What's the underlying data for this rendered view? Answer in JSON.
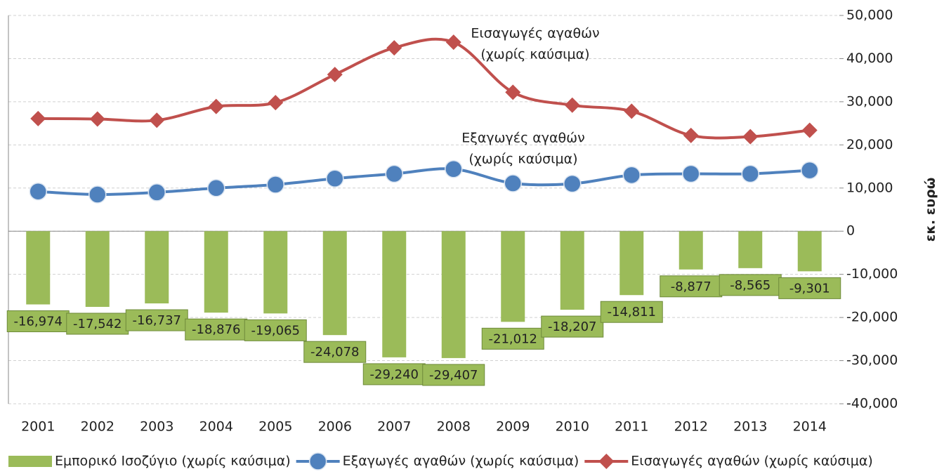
{
  "chart_data": {
    "type": "bar_line",
    "y_label": "εκ. ευρώ",
    "categories": [
      "2001",
      "2002",
      "2003",
      "2004",
      "2005",
      "2006",
      "2007",
      "2008",
      "2009",
      "2010",
      "2011",
      "2012",
      "2013",
      "2014"
    ],
    "series": [
      {
        "name": "Εμπορικό Ισοζύγιο (χωρίς καύσιμα)",
        "type": "bar",
        "color": "#9bbb59",
        "values": [
          -16974,
          -17542,
          -16737,
          -18876,
          -19065,
          -24078,
          -29240,
          -29407,
          -21012,
          -18207,
          -14811,
          -8877,
          -8565,
          -9301
        ],
        "value_labels": [
          "-16,974",
          "-17,542",
          "-16,737",
          "-18,876",
          "-19,065",
          "-24,078",
          "-29,240",
          "-29,407",
          "-21,012",
          "-18,207",
          "-14,811",
          "-8,877",
          "-8,565",
          "-9,301"
        ]
      },
      {
        "name": "Εξαγωγές αγαθών (χωρίς καύσιμα)",
        "type": "line",
        "marker": "circle",
        "color": "#4f81bd",
        "values": [
          9200,
          8500,
          9000,
          10000,
          10800,
          12200,
          13300,
          14400,
          11100,
          11000,
          13000,
          13300,
          13300,
          14100
        ]
      },
      {
        "name": "Εισαγωγές αγαθών (χωρίς καύσιμα)",
        "type": "line",
        "marker": "diamond",
        "color": "#c0504d",
        "values": [
          26100,
          26000,
          25700,
          28900,
          29800,
          36300,
          42500,
          43800,
          32200,
          29200,
          27800,
          22200,
          21900,
          23400
        ]
      }
    ],
    "annotations": [
      {
        "lines": [
          "Εισαγωγές αγαθών",
          "(χωρίς καύσιμα)"
        ]
      },
      {
        "lines": [
          "Εξαγωγές αγαθών",
          "(χωρίς καύσιμα)"
        ]
      }
    ],
    "ylim": [
      -40000,
      50000
    ],
    "yticks": [
      {
        "value": -40000,
        "label": "-40,000"
      },
      {
        "value": -30000,
        "label": "-30,000"
      },
      {
        "value": -20000,
        "label": "-20,000"
      },
      {
        "value": -10000,
        "label": "-10,000"
      },
      0,
      {
        "value": 10000,
        "label": "10,000"
      },
      {
        "value": 20000,
        "label": "20,000"
      },
      {
        "value": 30000,
        "label": "30,000"
      },
      {
        "value": 40000,
        "label": "40,000"
      },
      {
        "value": 50000,
        "label": "50,000"
      }
    ],
    "grid": true,
    "legend": "bottom"
  }
}
